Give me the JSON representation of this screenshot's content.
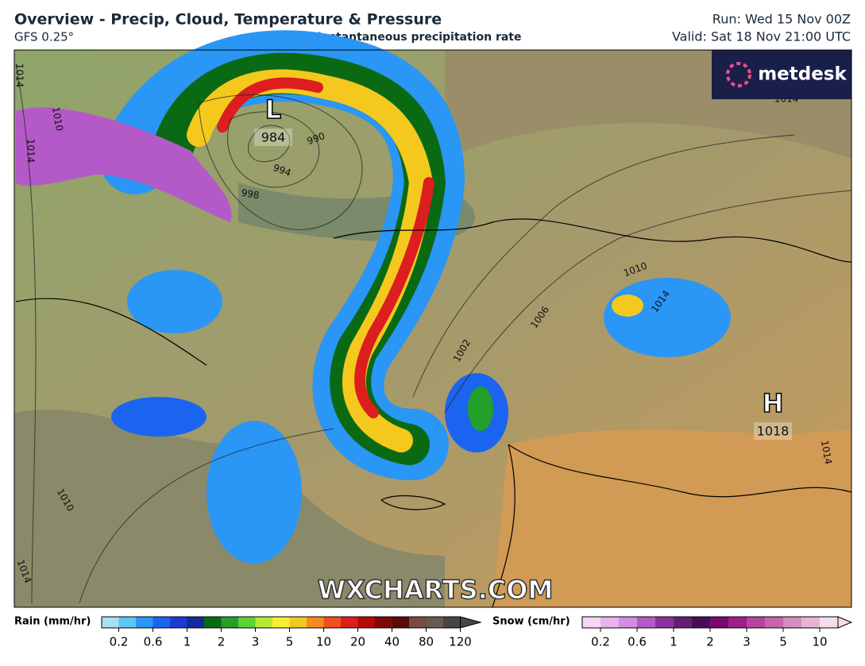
{
  "header": {
    "title": "Overview - Precip, Cloud, Temperature & Pressure",
    "model": "GFS 0.25°",
    "subtitle": "Instantaneous precipitation rate",
    "run": "Run: Wed 15 Nov 00Z",
    "valid": "Valid: Sat 18 Nov 21:00 UTC"
  },
  "logo": "metdesk",
  "watermark": "WXCHARTS.COM",
  "map": {
    "pressure_centers": [
      {
        "symbol": "L",
        "value": "984"
      },
      {
        "symbol": "H",
        "value": "1018"
      }
    ],
    "isobar_labels": [
      "1014",
      "1010",
      "1014",
      "990",
      "994",
      "998",
      "1002",
      "1006",
      "1010",
      "1014",
      "1010",
      "1014",
      "1014",
      "1014"
    ]
  },
  "legend": {
    "rain": {
      "label": "Rain (mm/hr)",
      "ticks": [
        "0.2",
        "0.6",
        "1",
        "2",
        "3",
        "5",
        "10",
        "20",
        "40",
        "80",
        "120"
      ],
      "colors": [
        "#a8e0ee",
        "#5ec6f2",
        "#2a96f5",
        "#1a64f0",
        "#1a3cd2",
        "#142a9a",
        "#0a6a14",
        "#22a02a",
        "#5cd234",
        "#b4eb32",
        "#f5f032",
        "#f5c81e",
        "#f58c1e",
        "#f0501e",
        "#dc1e1e",
        "#b40a0a",
        "#820808",
        "#5a0a0a",
        "#7a4a40",
        "#6a5a55",
        "#4a4444"
      ]
    },
    "snow": {
      "label": "Snow (cm/hr)",
      "ticks": [
        "0.2",
        "0.6",
        "1",
        "2",
        "3",
        "5",
        "10"
      ],
      "colors": [
        "#f5d7f5",
        "#e6b4eb",
        "#d28ce1",
        "#b45ac8",
        "#8c32a0",
        "#641e78",
        "#460f55",
        "#780a6e",
        "#a01e8c",
        "#b4469b",
        "#c864aa",
        "#d78cbe",
        "#e6b4d2",
        "#f5dceb"
      ]
    }
  }
}
